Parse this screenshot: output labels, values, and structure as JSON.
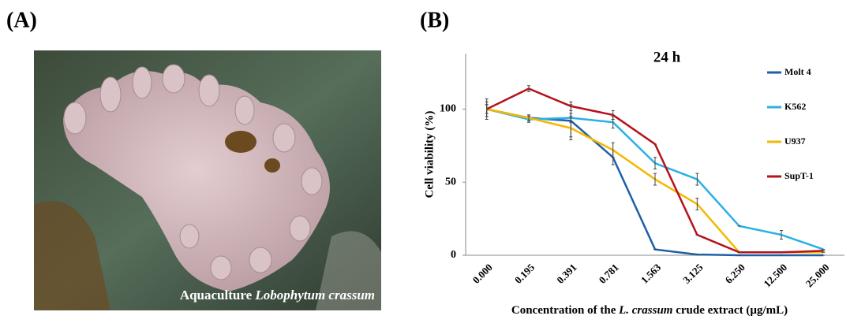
{
  "panel_a": {
    "label": "(A)",
    "caption": [
      "Aquaculture ",
      "Lobophytum crassum"
    ]
  },
  "chart_data": {
    "type": "line",
    "panel_label": "(B)",
    "title": "24 h",
    "y_label": "Cell viability (%)",
    "x_label": [
      "Concentration of the ",
      "L. crassum",
      " crude extract (µg/mL)"
    ],
    "categories": [
      "0.000",
      "0.195",
      "0.391",
      "0.781",
      "1.563",
      "3.125",
      "6.250",
      "12.500",
      "25.000"
    ],
    "ylim": [
      0,
      138
    ],
    "yticks": [
      0,
      50,
      100
    ],
    "series": [
      {
        "name": "Molt 4",
        "color": "#1f5fa8",
        "values": [
          100,
          94,
          92,
          67,
          4,
          0.5,
          0,
          0,
          0
        ],
        "errors": [
          7,
          2,
          11,
          5,
          0,
          0,
          0,
          0,
          0
        ]
      },
      {
        "name": "K562",
        "color": "#2ab0e4",
        "values": [
          100,
          93,
          94,
          91,
          63,
          52,
          20,
          14,
          4
        ],
        "errors": [
          3,
          2,
          3,
          4,
          4,
          4,
          0,
          3,
          0
        ]
      },
      {
        "name": "U937",
        "color": "#f5b800",
        "values": [
          100,
          94,
          87,
          72,
          52,
          35,
          2,
          2,
          2
        ],
        "errors": [
          3,
          2,
          8,
          5,
          4,
          4,
          0,
          0,
          0
        ]
      },
      {
        "name": "SupT-1",
        "color": "#b5121b",
        "values": [
          100,
          114,
          102,
          96,
          76,
          14,
          2,
          2,
          3
        ],
        "errors": [
          5,
          2,
          3,
          3,
          0,
          0,
          0,
          0,
          0
        ]
      }
    ]
  }
}
